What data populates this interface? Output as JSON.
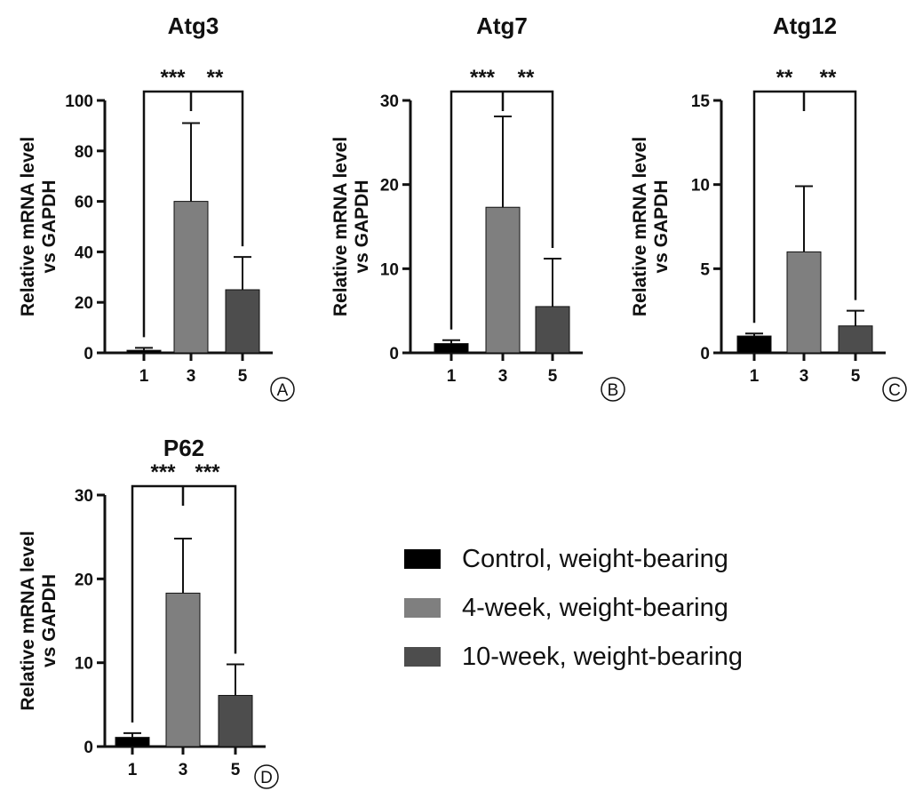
{
  "chart_data": [
    {
      "type": "bar",
      "panel": "A",
      "title": "Atg3",
      "ylabel": "Relative mRNA level\nvs GAPDH",
      "xlabel": "",
      "categories": [
        "1",
        "3",
        "5"
      ],
      "values": [
        1,
        60,
        25
      ],
      "errors": [
        1,
        31,
        13
      ],
      "ylim": [
        0,
        100
      ],
      "yticks": [
        "0",
        "20",
        "40",
        "60",
        "80",
        "100"
      ],
      "significance": [
        {
          "from": "1",
          "to": "3",
          "label": "***"
        },
        {
          "from": "3",
          "to": "5",
          "label": "**"
        }
      ]
    },
    {
      "type": "bar",
      "panel": "B",
      "title": "Atg7",
      "ylabel": "Relative mRNA level\nvs GAPDH",
      "xlabel": "",
      "categories": [
        "1",
        "3",
        "5"
      ],
      "values": [
        1.1,
        17.3,
        5.5
      ],
      "errors": [
        0.4,
        10.8,
        5.7
      ],
      "ylim": [
        0,
        30
      ],
      "yticks": [
        "0",
        "10",
        "20",
        "30"
      ],
      "significance": [
        {
          "from": "1",
          "to": "3",
          "label": "***"
        },
        {
          "from": "3",
          "to": "5",
          "label": "**"
        }
      ]
    },
    {
      "type": "bar",
      "panel": "C",
      "title": "Atg12",
      "ylabel": "Relative mRNA level\nvs GAPDH",
      "xlabel": "",
      "categories": [
        "1",
        "3",
        "5"
      ],
      "values": [
        1.0,
        6.0,
        1.6
      ],
      "errors": [
        0.15,
        3.9,
        0.9
      ],
      "ylim": [
        0,
        15
      ],
      "yticks": [
        "0",
        "5",
        "10",
        "15"
      ],
      "significance": [
        {
          "from": "1",
          "to": "3",
          "label": "**"
        },
        {
          "from": "3",
          "to": "5",
          "label": "**"
        }
      ]
    },
    {
      "type": "bar",
      "panel": "D",
      "title": "P62",
      "ylabel": "Relative mRNA level\nvs GAPDH",
      "xlabel": "",
      "categories": [
        "1",
        "3",
        "5"
      ],
      "values": [
        1.1,
        18.3,
        6.1
      ],
      "errors": [
        0.5,
        6.5,
        3.7
      ],
      "ylim": [
        0,
        30
      ],
      "yticks": [
        "0",
        "10",
        "20",
        "30"
      ],
      "significance": [
        {
          "from": "1",
          "to": "3",
          "label": "***"
        },
        {
          "from": "3",
          "to": "5",
          "label": "***"
        }
      ]
    }
  ],
  "legend": [
    {
      "label": "Control, weight-bearing",
      "color": "#000000"
    },
    {
      "label": "4-week, weight-bearing",
      "color": "#7f7f7f"
    },
    {
      "label": "10-week, weight-bearing",
      "color": "#4d4d4d"
    }
  ]
}
